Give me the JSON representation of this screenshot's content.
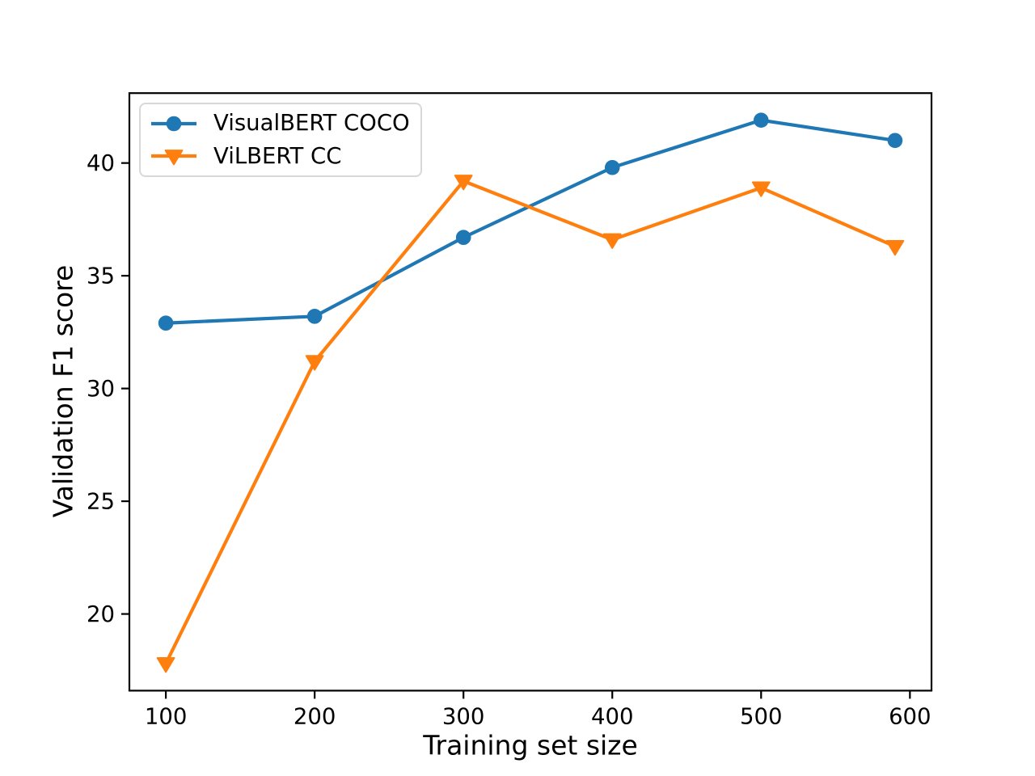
{
  "figure": {
    "background": "#ffffff",
    "text_color": "#000000"
  },
  "chart_data": {
    "type": "line",
    "title": "",
    "xlabel": "Training set size",
    "ylabel": "Validation F1 score",
    "x": [
      100,
      200,
      300,
      400,
      500,
      590
    ],
    "series": [
      {
        "name": "VisualBERT COCO",
        "color": "#1f77b4",
        "marker": "circle",
        "values": [
          32.9,
          33.2,
          36.7,
          39.8,
          41.9,
          41.0
        ]
      },
      {
        "name": "ViLBERT CC",
        "color": "#ff7f0e",
        "marker": "triangle-down",
        "values": [
          17.8,
          31.2,
          39.2,
          36.6,
          38.9,
          36.3
        ]
      }
    ],
    "x_ticks": [
      100,
      200,
      300,
      400,
      500,
      600
    ],
    "y_ticks": [
      20,
      25,
      30,
      35,
      40
    ],
    "xlim": [
      75.5,
      614.5
    ],
    "ylim": [
      16.6,
      43.1
    ],
    "grid": false,
    "legend_position": "upper left"
  }
}
